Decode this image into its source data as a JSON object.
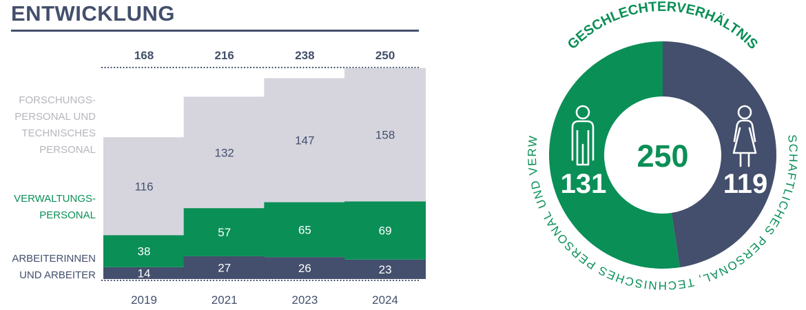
{
  "title": "ENTWICKLUNG",
  "colors": {
    "navy": "#434f6c",
    "green": "#0a8f57",
    "light": "#d6d5de",
    "label_grey": "#b5b5bd",
    "white": "#ffffff"
  },
  "chart_data": [
    {
      "type": "bar",
      "stacked": true,
      "title": "ENTWICKLUNG",
      "categories": [
        "2019",
        "2021",
        "2023",
        "2024"
      ],
      "totals": [
        168,
        216,
        238,
        250
      ],
      "series": [
        {
          "name": "ARBEITERINNEN UND ARBEITER",
          "legend_lines": [
            "ARBEITERINNEN",
            "UND ARBEITER"
          ],
          "color": "#434f6c",
          "label_color": "#ffffff",
          "values": [
            14,
            27,
            26,
            23
          ]
        },
        {
          "name": "VERWALTUNGSPERSONAL",
          "legend_lines": [
            "VERWALTUNGS-",
            "PERSONAL"
          ],
          "color": "#0a8f57",
          "label_color": "#ffffff",
          "values": [
            38,
            57,
            65,
            69
          ]
        },
        {
          "name": "FORSCHUNGSPERSONAL UND TECHNISCHES PERSONAL",
          "legend_lines": [
            "FORSCHUNGS-",
            "PERSONAL UND",
            "TECHNISCHES",
            "PERSONAL"
          ],
          "color": "#d6d5de",
          "label_color": "#434f6c",
          "values": [
            116,
            132,
            147,
            158
          ]
        }
      ],
      "ylim": [
        0,
        250
      ]
    },
    {
      "type": "pie",
      "donut": true,
      "title": "GESCHLECHTERVERHÄLTNIS",
      "subtitle": "(WISSENSCHAFTLICHES PERSONAL, TECHNISCHES PERSONAL UND VERWALTUNG)",
      "total": 250,
      "slices": [
        {
          "label": "male",
          "icon": "male-person-icon",
          "value": 131,
          "color": "#0a8f57"
        },
        {
          "label": "female",
          "icon": "female-person-icon",
          "value": 119,
          "color": "#434f6c"
        }
      ]
    }
  ]
}
